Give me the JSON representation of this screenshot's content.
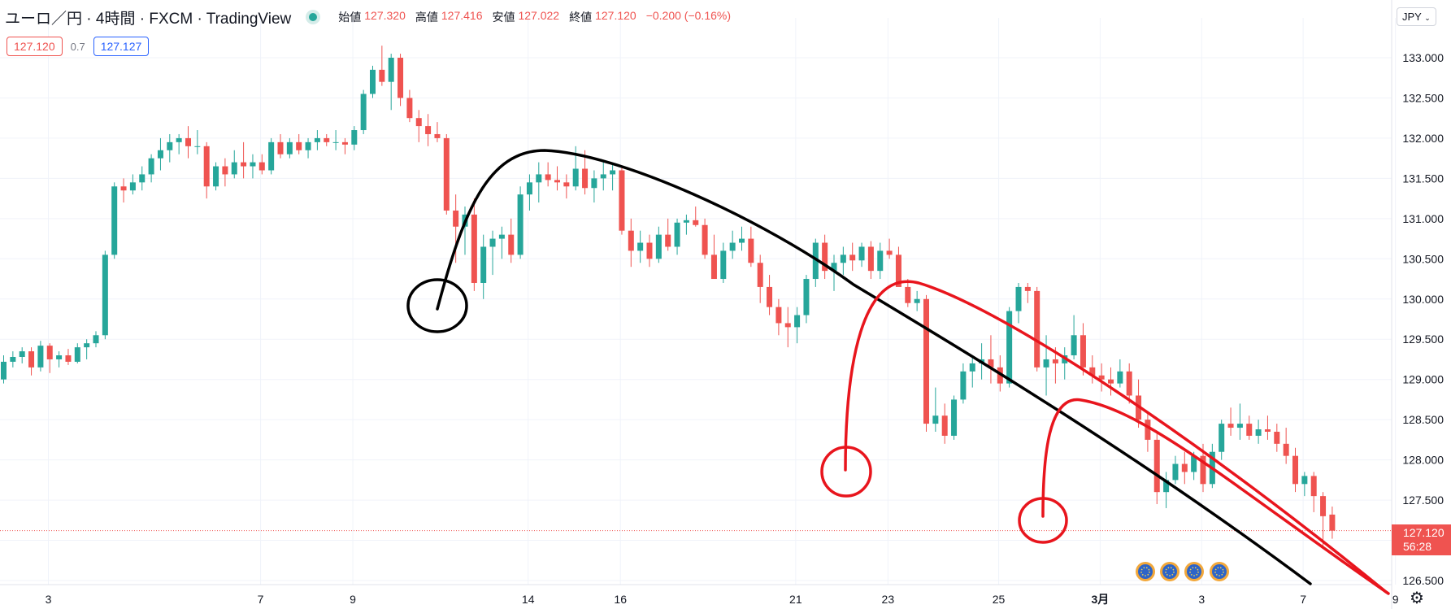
{
  "header": {
    "symbol": "ユーロ／円 · 4時間 · FXCM · TradingView",
    "ohlc": [
      {
        "label": "始値",
        "value": "127.320"
      },
      {
        "label": "高値",
        "value": "127.416"
      },
      {
        "label": "安値",
        "value": "127.022"
      },
      {
        "label": "終値",
        "value": "127.120"
      }
    ],
    "change": "−0.200 (−0.16%)",
    "bid": "127.120",
    "spread": "0.7",
    "ask": "127.127"
  },
  "price_scale": {
    "currency": "JPY",
    "current_price": "127.120",
    "countdown": "56:28"
  },
  "colors": {
    "up": "#26a69a",
    "down": "#ef5350",
    "bid": "#ef5350",
    "ask": "#2962ff"
  },
  "icons": [
    "status-dot-icon",
    "chevron-down-icon",
    "gear-icon",
    "event-flag-icon"
  ],
  "chart_data": {
    "type": "candlestick",
    "ylim": [
      126.45,
      133.6
    ],
    "yticks": [
      "126.500",
      "127.000",
      "127.500",
      "128.000",
      "128.500",
      "129.000",
      "129.500",
      "130.000",
      "130.500",
      "131.000",
      "131.500",
      "132.000",
      "132.500",
      "133.000"
    ],
    "xticks": [
      {
        "label": "3",
        "x": 0
      },
      {
        "label": "7",
        "x": 23
      },
      {
        "label": "9",
        "x": 33
      },
      {
        "label": "14",
        "x": 52
      },
      {
        "label": "16",
        "x": 62
      },
      {
        "label": "21",
        "x": 81
      },
      {
        "label": "23",
        "x": 91
      },
      {
        "label": "25",
        "x": 103
      },
      {
        "label": "3月",
        "x": 114
      },
      {
        "label": "3",
        "x": 125
      },
      {
        "label": "7",
        "x": 136
      },
      {
        "label": "9",
        "x": 146
      }
    ],
    "candles": [
      [
        129.0,
        129.3,
        128.95,
        129.22
      ],
      [
        129.22,
        129.35,
        129.15,
        129.28
      ],
      [
        129.28,
        129.4,
        129.2,
        129.35
      ],
      [
        129.35,
        129.4,
        129.05,
        129.15
      ],
      [
        129.15,
        129.48,
        129.1,
        129.42
      ],
      [
        129.42,
        129.45,
        129.08,
        129.25
      ],
      [
        129.25,
        129.35,
        129.15,
        129.3
      ],
      [
        129.3,
        129.38,
        129.18,
        129.22
      ],
      [
        129.22,
        129.45,
        129.2,
        129.4
      ],
      [
        129.4,
        129.5,
        129.25,
        129.45
      ],
      [
        129.45,
        129.6,
        129.4,
        129.55
      ],
      [
        129.55,
        130.6,
        129.5,
        130.55
      ],
      [
        130.55,
        131.45,
        130.5,
        131.4
      ],
      [
        131.4,
        131.5,
        131.2,
        131.35
      ],
      [
        131.35,
        131.55,
        131.3,
        131.45
      ],
      [
        131.45,
        131.65,
        131.35,
        131.55
      ],
      [
        131.55,
        131.8,
        131.45,
        131.75
      ],
      [
        131.75,
        132.0,
        131.6,
        131.85
      ],
      [
        131.85,
        132.05,
        131.7,
        131.95
      ],
      [
        131.95,
        132.05,
        131.8,
        132.0
      ],
      [
        132.0,
        132.15,
        131.75,
        131.9
      ],
      [
        131.9,
        132.1,
        131.8,
        131.9
      ],
      [
        131.9,
        131.95,
        131.25,
        131.4
      ],
      [
        131.4,
        131.7,
        131.35,
        131.65
      ],
      [
        131.65,
        131.75,
        131.4,
        131.55
      ],
      [
        131.55,
        131.85,
        131.5,
        131.7
      ],
      [
        131.7,
        131.95,
        131.5,
        131.65
      ],
      [
        131.65,
        131.8,
        131.5,
        131.7
      ],
      [
        131.7,
        131.8,
        131.55,
        131.6
      ],
      [
        131.6,
        132.0,
        131.55,
        131.95
      ],
      [
        131.95,
        132.05,
        131.75,
        131.8
      ],
      [
        131.8,
        132.0,
        131.75,
        131.95
      ],
      [
        131.95,
        132.05,
        131.8,
        131.85
      ],
      [
        131.85,
        132.0,
        131.75,
        131.95
      ],
      [
        131.95,
        132.1,
        131.85,
        132.0
      ],
      [
        132.0,
        132.05,
        131.9,
        131.95
      ],
      [
        131.95,
        132.1,
        131.85,
        131.95
      ],
      [
        131.95,
        132.0,
        131.8,
        131.92
      ],
      [
        131.92,
        132.15,
        131.85,
        132.1
      ],
      [
        132.1,
        132.6,
        132.05,
        132.55
      ],
      [
        132.55,
        132.9,
        132.5,
        132.85
      ],
      [
        132.85,
        133.15,
        132.65,
        132.7
      ],
      [
        132.7,
        133.05,
        132.35,
        133.0
      ],
      [
        133.0,
        133.05,
        132.4,
        132.5
      ],
      [
        132.5,
        132.6,
        132.2,
        132.25
      ],
      [
        132.25,
        132.35,
        131.95,
        132.15
      ],
      [
        132.15,
        132.3,
        131.9,
        132.05
      ],
      [
        132.05,
        132.2,
        131.95,
        132.0
      ],
      [
        132.0,
        132.05,
        131.05,
        131.1
      ],
      [
        131.1,
        131.3,
        130.45,
        130.9
      ],
      [
        130.9,
        131.15,
        130.55,
        131.05
      ],
      [
        131.05,
        131.25,
        130.1,
        130.2
      ],
      [
        130.2,
        130.8,
        130.0,
        130.65
      ],
      [
        130.65,
        130.85,
        130.3,
        130.75
      ],
      [
        130.75,
        130.9,
        130.5,
        130.8
      ],
      [
        130.8,
        131.0,
        130.45,
        130.55
      ],
      [
        130.55,
        131.4,
        130.5,
        131.3
      ],
      [
        131.3,
        131.55,
        131.1,
        131.45
      ],
      [
        131.45,
        131.7,
        131.2,
        131.55
      ],
      [
        131.55,
        131.7,
        131.4,
        131.48
      ],
      [
        131.48,
        131.65,
        131.35,
        131.45
      ],
      [
        131.45,
        131.55,
        131.25,
        131.4
      ],
      [
        131.4,
        131.9,
        131.35,
        131.62
      ],
      [
        131.62,
        131.85,
        131.3,
        131.38
      ],
      [
        131.38,
        131.6,
        131.2,
        131.5
      ],
      [
        131.5,
        131.7,
        131.35,
        131.55
      ],
      [
        131.55,
        131.68,
        131.35,
        131.6
      ],
      [
        131.6,
        131.65,
        130.8,
        130.85
      ],
      [
        130.85,
        131.0,
        130.4,
        130.6
      ],
      [
        130.6,
        130.85,
        130.45,
        130.7
      ],
      [
        130.7,
        130.8,
        130.4,
        130.5
      ],
      [
        130.5,
        130.9,
        130.45,
        130.8
      ],
      [
        130.8,
        131.0,
        130.6,
        130.65
      ],
      [
        130.65,
        131.0,
        130.55,
        130.95
      ],
      [
        130.95,
        131.05,
        130.8,
        130.98
      ],
      [
        130.98,
        131.15,
        130.9,
        130.92
      ],
      [
        130.92,
        131.0,
        130.5,
        130.55
      ],
      [
        130.55,
        130.8,
        130.3,
        130.25
      ],
      [
        130.25,
        130.7,
        130.2,
        130.6
      ],
      [
        130.6,
        130.85,
        130.5,
        130.7
      ],
      [
        130.7,
        130.9,
        130.6,
        130.75
      ],
      [
        130.75,
        130.9,
        130.4,
        130.45
      ],
      [
        130.45,
        130.55,
        129.95,
        130.15
      ],
      [
        130.15,
        130.3,
        129.8,
        129.9
      ],
      [
        129.9,
        130.0,
        129.55,
        129.7
      ],
      [
        129.7,
        129.9,
        129.4,
        129.65
      ],
      [
        129.65,
        129.9,
        129.45,
        129.8
      ],
      [
        129.8,
        130.3,
        129.7,
        130.25
      ],
      [
        130.25,
        130.75,
        130.15,
        130.7
      ],
      [
        130.7,
        130.8,
        130.25,
        130.35
      ],
      [
        130.35,
        130.55,
        130.1,
        130.45
      ],
      [
        130.45,
        130.65,
        130.3,
        130.55
      ],
      [
        130.55,
        130.7,
        130.35,
        130.48
      ],
      [
        130.48,
        130.7,
        130.4,
        130.65
      ],
      [
        130.65,
        130.72,
        130.25,
        130.35
      ],
      [
        130.35,
        130.7,
        130.25,
        130.6
      ],
      [
        130.6,
        130.75,
        130.5,
        130.55
      ],
      [
        130.55,
        130.65,
        130.2,
        130.15
      ],
      [
        130.15,
        130.25,
        129.9,
        129.95
      ],
      [
        129.95,
        130.1,
        129.85,
        130.0
      ],
      [
        130.0,
        130.05,
        128.35,
        128.45
      ],
      [
        128.45,
        128.9,
        128.35,
        128.55
      ],
      [
        128.55,
        128.7,
        128.2,
        128.3
      ],
      [
        128.3,
        128.8,
        128.25,
        128.75
      ],
      [
        128.75,
        129.2,
        128.7,
        129.1
      ],
      [
        129.1,
        129.3,
        128.9,
        129.2
      ],
      [
        129.2,
        129.45,
        129.0,
        129.25
      ],
      [
        129.25,
        129.55,
        128.95,
        129.15
      ],
      [
        129.15,
        129.3,
        128.85,
        128.95
      ],
      [
        128.95,
        129.9,
        128.9,
        129.85
      ],
      [
        129.85,
        130.2,
        129.7,
        130.15
      ],
      [
        130.15,
        130.2,
        129.95,
        130.1
      ],
      [
        130.1,
        130.15,
        129.1,
        129.15
      ],
      [
        129.15,
        129.55,
        128.8,
        129.25
      ],
      [
        129.25,
        129.4,
        128.95,
        129.2
      ],
      [
        129.2,
        129.4,
        129.0,
        129.3
      ],
      [
        129.3,
        129.8,
        129.25,
        129.55
      ],
      [
        129.55,
        129.7,
        129.05,
        129.15
      ],
      [
        129.15,
        129.3,
        128.95,
        129.05
      ],
      [
        129.05,
        129.2,
        128.85,
        129.0
      ],
      [
        129.0,
        129.15,
        128.8,
        128.95
      ],
      [
        128.95,
        129.25,
        128.9,
        129.1
      ],
      [
        129.1,
        129.2,
        128.7,
        128.8
      ],
      [
        128.8,
        129.0,
        128.4,
        128.5
      ],
      [
        128.5,
        128.6,
        128.1,
        128.25
      ],
      [
        128.25,
        128.35,
        127.45,
        127.6
      ],
      [
        127.6,
        127.85,
        127.4,
        127.75
      ],
      [
        127.75,
        128.05,
        127.7,
        127.95
      ],
      [
        127.95,
        128.1,
        127.7,
        127.85
      ],
      [
        127.85,
        128.1,
        127.75,
        128.05
      ],
      [
        128.05,
        128.2,
        127.6,
        127.7
      ],
      [
        127.7,
        128.2,
        127.65,
        128.1
      ],
      [
        128.1,
        128.5,
        128.0,
        128.45
      ],
      [
        128.45,
        128.65,
        128.3,
        128.4
      ],
      [
        128.4,
        128.7,
        128.25,
        128.45
      ],
      [
        128.45,
        128.55,
        128.25,
        128.3
      ],
      [
        128.3,
        128.5,
        128.2,
        128.38
      ],
      [
        128.38,
        128.55,
        128.25,
        128.35
      ],
      [
        128.35,
        128.45,
        128.1,
        128.2
      ],
      [
        128.2,
        128.4,
        127.95,
        128.05
      ],
      [
        128.05,
        128.15,
        127.6,
        127.7
      ],
      [
        127.7,
        127.85,
        127.55,
        127.8
      ],
      [
        127.8,
        127.85,
        127.35,
        127.55
      ],
      [
        127.55,
        127.6,
        126.9,
        127.3
      ],
      [
        127.32,
        127.42,
        127.02,
        127.12
      ]
    ],
    "event_flags": 4
  }
}
